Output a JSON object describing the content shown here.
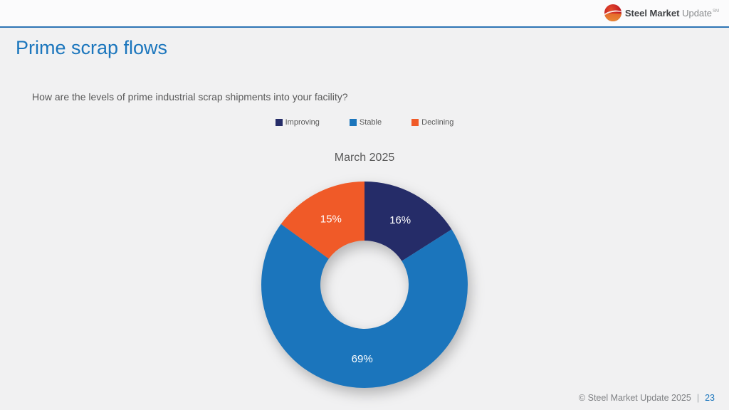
{
  "header": {
    "logo": {
      "bold": "Steel Market",
      "light": "Update",
      "mark": "SM"
    }
  },
  "slide": {
    "title": "Prime scrap flows",
    "question": "How are the levels of prime industrial scrap shipments into your facility?"
  },
  "chart_data": {
    "type": "pie",
    "subtype": "donut",
    "title": "March 2025",
    "categories": [
      "Improving",
      "Stable",
      "Declining"
    ],
    "values": [
      16,
      69,
      15
    ],
    "labels": [
      "16%",
      "69%",
      "15%"
    ],
    "colors": [
      "#252c68",
      "#1b75bc",
      "#f05a28"
    ],
    "legend_position": "top",
    "start_angle_deg": 0,
    "direction": "clockwise"
  },
  "footer": {
    "copyright": "© Steel Market Update 2025",
    "separator": "|",
    "page_number": "23"
  }
}
